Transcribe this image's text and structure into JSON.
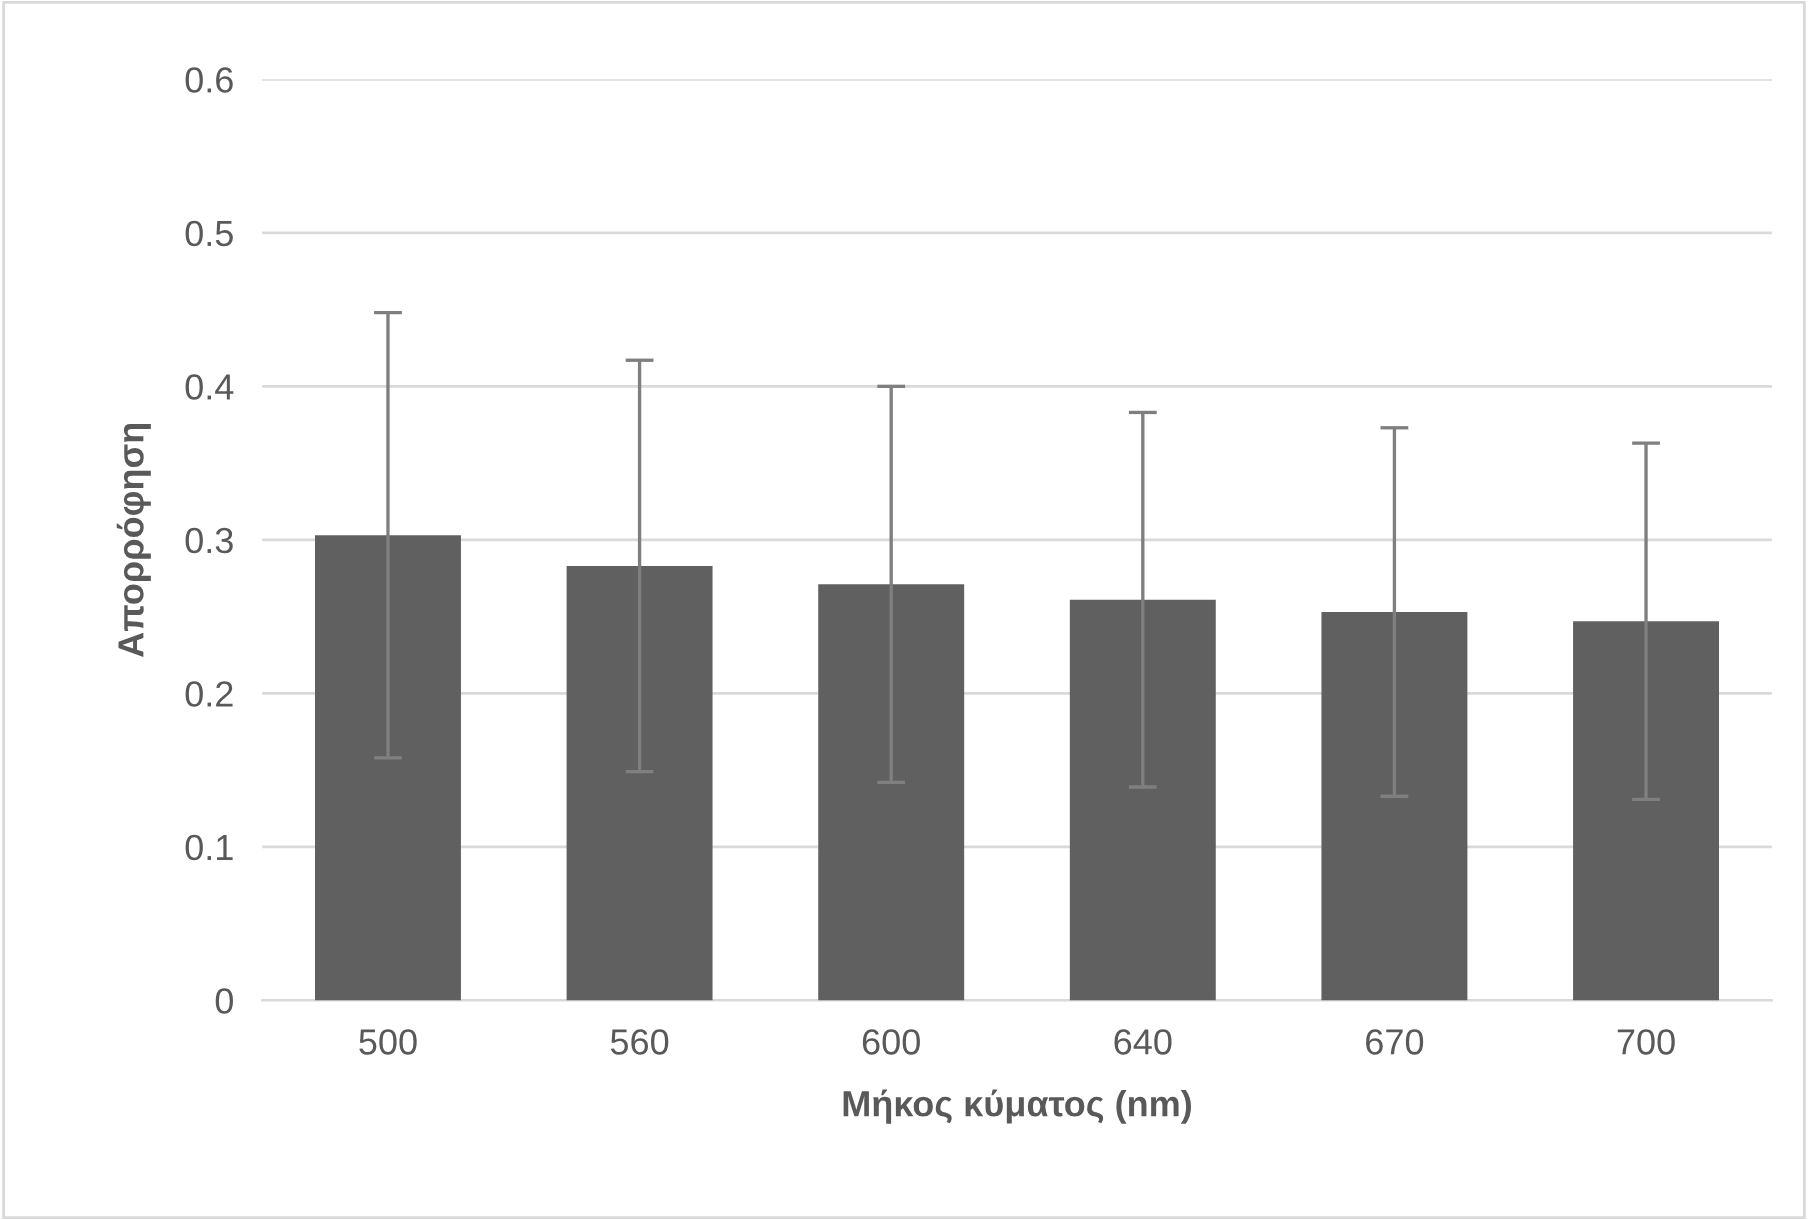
{
  "chart_data": {
    "type": "bar",
    "xlabel": "Μήκος κύματος (nm)",
    "ylabel": "Απορρόφηση",
    "categories": [
      "500",
      "560",
      "600",
      "640",
      "670",
      "700"
    ],
    "values": [
      0.303,
      0.283,
      0.271,
      0.261,
      0.253,
      0.247
    ],
    "errors": [
      0.145,
      0.134,
      0.129,
      0.122,
      0.12,
      0.116
    ],
    "color": "#606060",
    "ylim": [
      0,
      0.6
    ],
    "yticks": [
      {
        "value": 0,
        "label": "0"
      },
      0.1,
      0.2,
      0.3,
      0.4,
      0.5,
      0.6
    ],
    "grid": "y"
  }
}
